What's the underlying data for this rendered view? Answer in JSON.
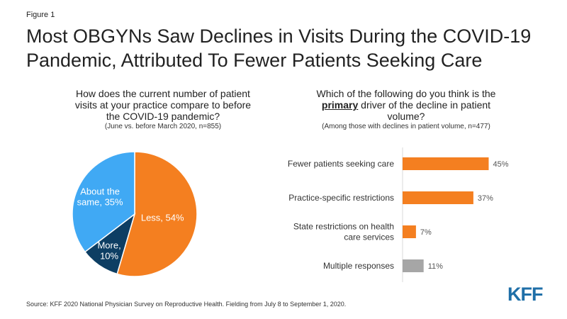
{
  "figure_label": "Figure 1",
  "title_lines": [
    "Most OBGYNs Saw Declines in Visits During the COVID-19",
    "Pandemic, Attributed To Fewer Patients Seeking Care"
  ],
  "source": "Source: KFF 2020 National Physician Survey on Reproductive Health. Fielding from July 8 to September 1, 2020.",
  "logo": "KFF",
  "colors": {
    "orange": "#f47f20",
    "blue": "#40a9f4",
    "navy": "#0d3e63",
    "gray": "#a6a6a6"
  },
  "chart_data": [
    {
      "type": "pie",
      "title_lines": [
        "How does the current number of patient",
        "visits at your practice compare to before",
        "the COVID-19 pandemic?"
      ],
      "subtitle": "(June vs. before March 2020, n=855)",
      "slices": [
        {
          "name": "Less",
          "value": 54,
          "label_lines": [
            "Less, 54%"
          ],
          "color": "#f47f20"
        },
        {
          "name": "More",
          "value": 10,
          "label_lines": [
            "More,",
            "10%"
          ],
          "color": "#0d3e63"
        },
        {
          "name": "About the same",
          "value": 35,
          "label_lines": [
            "About the",
            "same, 35%"
          ],
          "color": "#40a9f4"
        }
      ]
    },
    {
      "type": "bar",
      "orientation": "horizontal",
      "title_line1": "Which of the following do you think is the",
      "title_emphasis": "primary",
      "title_line2_rest": " driver of the decline in patient",
      "title_line3": "volume?",
      "subtitle": "(Among those with declines in patient volume, n=477)",
      "categories": [
        [
          "Fewer patients seeking care"
        ],
        [
          "Practice-specific restrictions"
        ],
        [
          "State restrictions on health",
          "care services"
        ],
        [
          "Multiple responses"
        ]
      ],
      "values": [
        45,
        37,
        7,
        11
      ],
      "value_labels": [
        "45%",
        "37%",
        "7%",
        "11%"
      ],
      "bar_colors": [
        "#f47f20",
        "#f47f20",
        "#f47f20",
        "#a6a6a6"
      ],
      "xlim": [
        0,
        100
      ]
    }
  ]
}
